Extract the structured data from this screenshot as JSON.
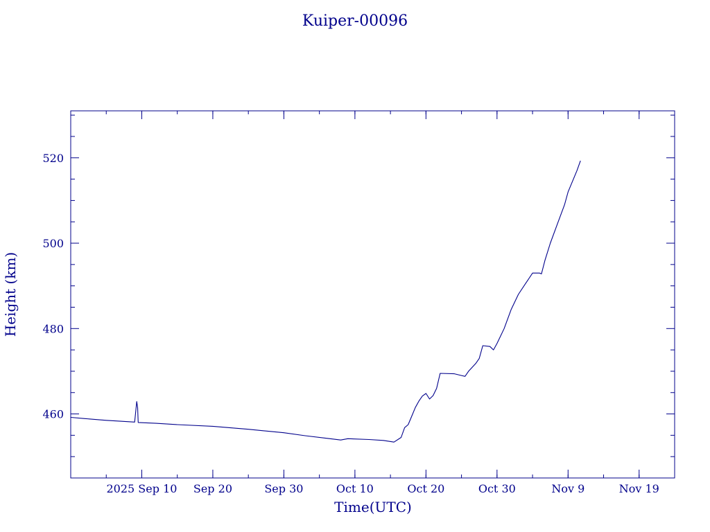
{
  "chart_data": {
    "type": "line",
    "title": "Kuiper-00096",
    "xlabel": "Time(UTC)",
    "ylabel": "Height (km)",
    "color": "#00008b",
    "grid": false,
    "legend": "none",
    "x_ticks": [
      {
        "date": "2025-09-10",
        "label": "2025 Sep 10"
      },
      {
        "date": "2025-09-20",
        "label": "Sep 20"
      },
      {
        "date": "2025-09-30",
        "label": "Sep 30"
      },
      {
        "date": "2025-10-10",
        "label": "Oct 10"
      },
      {
        "date": "2025-10-20",
        "label": "Oct 20"
      },
      {
        "date": "2025-10-30",
        "label": "Oct 30"
      },
      {
        "date": "2025-11-09",
        "label": "Nov  9"
      },
      {
        "date": "2025-11-19",
        "label": "Nov 19"
      }
    ],
    "xlim": [
      "2025-08-31",
      "2025-11-24"
    ],
    "y_ticks": [
      460,
      480,
      500,
      520
    ],
    "ylim": [
      445,
      531
    ],
    "points": [
      {
        "x": "2025-08-31",
        "y": 459.2
      },
      {
        "x": "2025-09-02",
        "y": 458.9
      },
      {
        "x": "2025-09-05",
        "y": 458.5
      },
      {
        "x": "2025-09-08",
        "y": 458.2
      },
      {
        "x": "2025-09-09 00:00",
        "y": 458.1
      },
      {
        "x": "2025-09-09 07:00",
        "y": 462.9
      },
      {
        "x": "2025-09-09 10:00",
        "y": 461.5
      },
      {
        "x": "2025-09-09 12:00",
        "y": 458.0
      },
      {
        "x": "2025-09-12",
        "y": 457.8
      },
      {
        "x": "2025-09-15",
        "y": 457.5
      },
      {
        "x": "2025-09-20",
        "y": 457.1
      },
      {
        "x": "2025-09-25",
        "y": 456.4
      },
      {
        "x": "2025-09-30",
        "y": 455.6
      },
      {
        "x": "2025-10-03",
        "y": 454.9
      },
      {
        "x": "2025-10-06",
        "y": 454.3
      },
      {
        "x": "2025-10-08",
        "y": 453.9
      },
      {
        "x": "2025-10-09",
        "y": 454.2
      },
      {
        "x": "2025-10-12",
        "y": 454.0
      },
      {
        "x": "2025-10-14",
        "y": 453.8
      },
      {
        "x": "2025-10-15 12:00",
        "y": 453.4
      },
      {
        "x": "2025-10-16 12:00",
        "y": 454.5
      },
      {
        "x": "2025-10-17",
        "y": 456.8
      },
      {
        "x": "2025-10-17 12:00",
        "y": 457.5
      },
      {
        "x": "2025-10-18",
        "y": 459.5
      },
      {
        "x": "2025-10-18 12:00",
        "y": 461.5
      },
      {
        "x": "2025-10-19",
        "y": 463.0
      },
      {
        "x": "2025-10-19 12:00",
        "y": 464.2
      },
      {
        "x": "2025-10-20",
        "y": 464.8
      },
      {
        "x": "2025-10-20 12:00",
        "y": 463.5
      },
      {
        "x": "2025-10-21",
        "y": 464.3
      },
      {
        "x": "2025-10-21 12:00",
        "y": 466.0
      },
      {
        "x": "2025-10-22",
        "y": 469.5
      },
      {
        "x": "2025-10-24",
        "y": 469.4
      },
      {
        "x": "2025-10-25",
        "y": 469.0
      },
      {
        "x": "2025-10-25 12:00",
        "y": 468.8
      },
      {
        "x": "2025-10-26",
        "y": 470.0
      },
      {
        "x": "2025-10-27",
        "y": 471.8
      },
      {
        "x": "2025-10-27 12:00",
        "y": 473.0
      },
      {
        "x": "2025-10-28",
        "y": 476.0
      },
      {
        "x": "2025-10-29",
        "y": 475.8
      },
      {
        "x": "2025-10-29 12:00",
        "y": 475.0
      },
      {
        "x": "2025-10-30",
        "y": 476.5
      },
      {
        "x": "2025-10-31",
        "y": 480.0
      },
      {
        "x": "2025-11-01",
        "y": 484.5
      },
      {
        "x": "2025-11-02",
        "y": 488.0
      },
      {
        "x": "2025-11-03",
        "y": 490.5
      },
      {
        "x": "2025-11-04",
        "y": 493.0
      },
      {
        "x": "2025-11-05",
        "y": 493.0
      },
      {
        "x": "2025-11-05 06:00",
        "y": 492.8
      },
      {
        "x": "2025-11-05 18:00",
        "y": 496.0
      },
      {
        "x": "2025-11-06 12:00",
        "y": 500.0
      },
      {
        "x": "2025-11-07 12:00",
        "y": 504.5
      },
      {
        "x": "2025-11-08 12:00",
        "y": 509.0
      },
      {
        "x": "2025-11-09",
        "y": 512.0
      },
      {
        "x": "2025-11-09 12:00",
        "y": 514.0
      },
      {
        "x": "2025-11-10 06:00",
        "y": 517.0
      },
      {
        "x": "2025-11-10 18:00",
        "y": 519.3
      }
    ]
  }
}
